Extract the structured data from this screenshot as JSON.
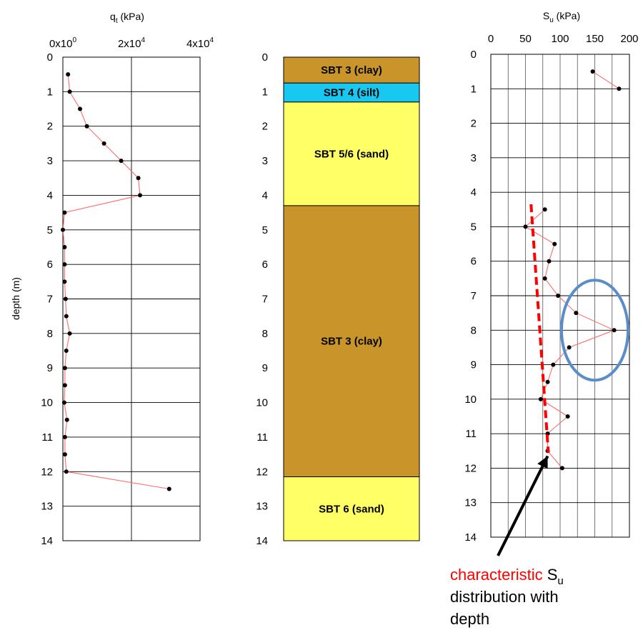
{
  "chart_data": [
    {
      "type": "scatter",
      "id": "qt",
      "xlabel": "q",
      "xlabel_sub": "t",
      "xlabel_unit": " (kPa)",
      "ylabel": "depth (m)",
      "xlim": [
        0,
        40000
      ],
      "ylim": [
        0,
        14
      ],
      "y_inverted": true,
      "xticks": [
        {
          "base": "0x10",
          "exp": "0",
          "value": 0
        },
        {
          "base": "2x10",
          "exp": "4",
          "value": 20000
        },
        {
          "base": "4x10",
          "exp": "4",
          "value": 40000
        }
      ],
      "yticks": [
        "0",
        "1",
        "2",
        "3",
        "4",
        "5",
        "6",
        "7",
        "8",
        "9",
        "10",
        "11",
        "12",
        "13",
        "14"
      ],
      "grid": true,
      "series": [
        {
          "color": "#ff6b6b",
          "points": [
            {
              "x": 1500,
              "y": 0.5
            },
            {
              "x": 2000,
              "y": 1.0
            },
            {
              "x": 5000,
              "y": 1.5
            },
            {
              "x": 7000,
              "y": 2.0
            },
            {
              "x": 12000,
              "y": 2.5
            },
            {
              "x": 17000,
              "y": 3.0
            },
            {
              "x": 22000,
              "y": 3.5
            },
            {
              "x": 22500,
              "y": 4.0
            },
            {
              "x": 500,
              "y": 4.5
            },
            {
              "x": 0,
              "y": 5.0
            },
            {
              "x": 500,
              "y": 5.5
            },
            {
              "x": 500,
              "y": 6.0
            },
            {
              "x": 500,
              "y": 6.5
            },
            {
              "x": 800,
              "y": 7.0
            },
            {
              "x": 1000,
              "y": 7.5
            },
            {
              "x": 2000,
              "y": 8.0
            },
            {
              "x": 1000,
              "y": 8.5
            },
            {
              "x": 600,
              "y": 9.0
            },
            {
              "x": 600,
              "y": 9.5
            },
            {
              "x": 400,
              "y": 10.0
            },
            {
              "x": 1200,
              "y": 10.5
            },
            {
              "x": 600,
              "y": 11.0
            },
            {
              "x": 600,
              "y": 11.5
            },
            {
              "x": 1000,
              "y": 12.0
            },
            {
              "x": 31000,
              "y": 12.5
            }
          ]
        }
      ]
    },
    {
      "type": "table",
      "id": "sbt",
      "ylim": [
        0,
        14
      ],
      "yticks": [
        "0",
        "1",
        "2",
        "3",
        "4",
        "5",
        "6",
        "7",
        "8",
        "9",
        "10",
        "11",
        "12",
        "13",
        "14"
      ],
      "layers": [
        {
          "top": 0,
          "bottom": 0.75,
          "label": "SBT 3 (clay)",
          "color": "#c9952a"
        },
        {
          "top": 0.75,
          "bottom": 1.3,
          "label": "SBT 4 (silt)",
          "color": "#19c8f0"
        },
        {
          "top": 1.3,
          "bottom": 4.3,
          "label": "SBT 5/6 (sand)",
          "color": "#ffff66"
        },
        {
          "top": 4.3,
          "bottom": 12.15,
          "label": "SBT 3 (clay)",
          "color": "#c9952a"
        },
        {
          "top": 12.15,
          "bottom": 14,
          "label": "SBT 6 (sand)",
          "color": "#ffff66"
        }
      ]
    },
    {
      "type": "scatter",
      "id": "su",
      "xlabel": "S",
      "xlabel_sub": "u",
      "xlabel_unit": " (kPa)",
      "xlim": [
        0,
        200
      ],
      "ylim": [
        0,
        14
      ],
      "y_inverted": true,
      "xticks": [
        "0",
        "50",
        "100",
        "150",
        "200"
      ],
      "yticks": [
        "0",
        "1",
        "2",
        "3",
        "4",
        "5",
        "6",
        "7",
        "8",
        "9",
        "10",
        "11",
        "12",
        "13",
        "14"
      ],
      "grid": true,
      "series": [
        {
          "color": "#ff6b6b",
          "points": [
            {
              "x": 147,
              "y": 0.5
            },
            {
              "x": 185,
              "y": 1.0
            }
          ]
        },
        {
          "color": "#ff6b6b",
          "points": [
            {
              "x": 78,
              "y": 4.5
            },
            {
              "x": 50,
              "y": 5.0
            },
            {
              "x": 92,
              "y": 5.5
            },
            {
              "x": 84,
              "y": 6.0
            },
            {
              "x": 78,
              "y": 6.5
            },
            {
              "x": 97,
              "y": 7.0
            },
            {
              "x": 123,
              "y": 7.5
            },
            {
              "x": 178,
              "y": 8.0
            },
            {
              "x": 113,
              "y": 8.5
            },
            {
              "x": 90,
              "y": 9.0
            },
            {
              "x": 82,
              "y": 9.5
            },
            {
              "x": 72,
              "y": 10.0
            },
            {
              "x": 111,
              "y": 10.5
            },
            {
              "x": 82,
              "y": 11.0
            },
            {
              "x": 82,
              "y": 11.5
            },
            {
              "x": 103,
              "y": 12.0
            }
          ]
        }
      ],
      "characteristic_line": {
        "color": "#ff0000",
        "x": [
          58,
          83
        ],
        "y": [
          4.35,
          11.55
        ]
      },
      "highlight_ellipse": {
        "color": "#5b8ec8",
        "cx": 150,
        "cy": 8.0,
        "rx": 48,
        "ry": 1.45
      },
      "annotation": {
        "word1": "characteristic",
        "word1_color": "#ff0000",
        "word2": " S",
        "word2_sub": "u",
        "line2": "distribution with",
        "line3": "depth",
        "arrow_color": "#000000"
      }
    }
  ]
}
